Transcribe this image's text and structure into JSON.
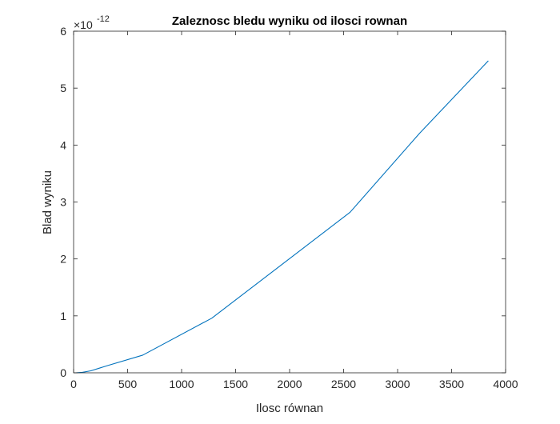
{
  "chart_data": {
    "type": "line",
    "title": "Zaleznosc bledu wyniku od ilosci rownan",
    "xlabel": "Ilosc równan",
    "ylabel": "Blad wyniku",
    "y_exponent": {
      "base": "×10",
      "power": "-12"
    },
    "xlim": [
      0,
      4000
    ],
    "ylim": [
      0,
      6
    ],
    "x_ticks": [
      0,
      500,
      1000,
      1500,
      2000,
      2500,
      3000,
      3500,
      4000
    ],
    "y_ticks": [
      0,
      1,
      2,
      3,
      4,
      5,
      6
    ],
    "grid": false,
    "series": [
      {
        "color": "#0072bd",
        "x": [
          10,
          20,
          40,
          80,
          160,
          320,
          640,
          1280,
          2560,
          3200,
          3840
        ],
        "y": [
          0.0,
          0.0,
          0.003,
          0.008,
          0.035,
          0.13,
          0.31,
          0.96,
          2.82,
          4.2,
          5.48
        ]
      }
    ]
  }
}
